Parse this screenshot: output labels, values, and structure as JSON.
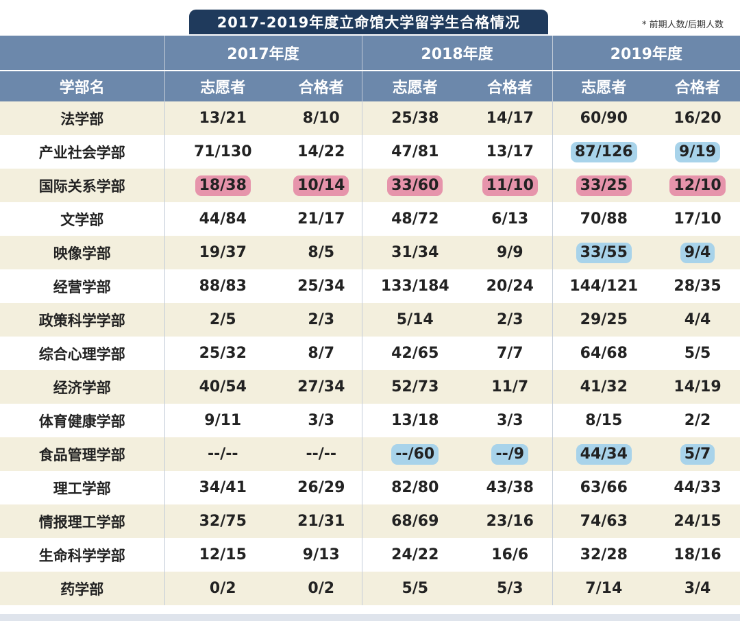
{
  "title": "2017-2019年度立命馆大学留学生合格情况",
  "note": "* 前期人数/后期人数",
  "header": {
    "dept_label": "学部名",
    "years": [
      "2017年度",
      "2018年度",
      "2019年度"
    ],
    "volunteer_label": "志愿者",
    "pass_label": "合格者"
  },
  "highlight_colors": {
    "pink": "#e694ab",
    "blue": "#a8d3ea"
  },
  "rows": [
    {
      "name": "法学部",
      "values": [
        "13/21",
        "8/10",
        "25/38",
        "14/17",
        "60/90",
        "16/20"
      ],
      "hl": [
        "",
        "",
        "",
        "",
        "",
        ""
      ]
    },
    {
      "name": "产业社会学部",
      "values": [
        "71/130",
        "14/22",
        "47/81",
        "13/17",
        "87/126",
        "9/19"
      ],
      "hl": [
        "",
        "",
        "",
        "",
        "blue",
        "blue"
      ]
    },
    {
      "name": "国际关系学部",
      "values": [
        "18/38",
        "10/14",
        "33/60",
        "11/10",
        "33/25",
        "12/10"
      ],
      "hl": [
        "pink",
        "pink",
        "pink",
        "pink",
        "pink",
        "pink"
      ]
    },
    {
      "name": "文学部",
      "values": [
        "44/84",
        "21/17",
        "48/72",
        "6/13",
        "70/88",
        "17/10"
      ],
      "hl": [
        "",
        "",
        "",
        "",
        "",
        ""
      ]
    },
    {
      "name": "映像学部",
      "values": [
        "19/37",
        "8/5",
        "31/34",
        "9/9",
        "33/55",
        "9/4"
      ],
      "hl": [
        "",
        "",
        "",
        "",
        "blue",
        "blue"
      ]
    },
    {
      "name": "经营学部",
      "values": [
        "88/83",
        "25/34",
        "133/184",
        "20/24",
        "144/121",
        "28/35"
      ],
      "hl": [
        "",
        "",
        "",
        "",
        "",
        ""
      ]
    },
    {
      "name": "政策科学学部",
      "values": [
        "2/5",
        "2/3",
        "5/14",
        "2/3",
        "29/25",
        "4/4"
      ],
      "hl": [
        "",
        "",
        "",
        "",
        "",
        ""
      ]
    },
    {
      "name": "综合心理学部",
      "values": [
        "25/32",
        "8/7",
        "42/65",
        "7/7",
        "64/68",
        "5/5"
      ],
      "hl": [
        "",
        "",
        "",
        "",
        "",
        ""
      ]
    },
    {
      "name": "经济学部",
      "values": [
        "40/54",
        "27/34",
        "52/73",
        "11/7",
        "41/32",
        "14/19"
      ],
      "hl": [
        "",
        "",
        "",
        "",
        "",
        ""
      ]
    },
    {
      "name": "体育健康学部",
      "values": [
        "9/11",
        "3/3",
        "13/18",
        "3/3",
        "8/15",
        "2/2"
      ],
      "hl": [
        "",
        "",
        "",
        "",
        "",
        ""
      ]
    },
    {
      "name": "食品管理学部",
      "values": [
        "--/--",
        "--/--",
        "--/60",
        "--/9",
        "44/34",
        "5/7"
      ],
      "hl": [
        "",
        "",
        "blue",
        "blue",
        "blue",
        "blue"
      ]
    },
    {
      "name": "理工学部",
      "values": [
        "34/41",
        "26/29",
        "82/80",
        "43/38",
        "63/66",
        "44/33"
      ],
      "hl": [
        "",
        "",
        "",
        "",
        "",
        ""
      ]
    },
    {
      "name": "情报理工学部",
      "values": [
        "32/75",
        "21/31",
        "68/69",
        "23/16",
        "74/63",
        "24/15"
      ],
      "hl": [
        "",
        "",
        "",
        "",
        "",
        ""
      ]
    },
    {
      "name": "生命科学学部",
      "values": [
        "12/15",
        "9/13",
        "24/22",
        "16/6",
        "32/28",
        "18/16"
      ],
      "hl": [
        "",
        "",
        "",
        "",
        "",
        ""
      ]
    },
    {
      "name": "药学部",
      "values": [
        "0/2",
        "0/2",
        "5/5",
        "5/3",
        "7/14",
        "3/4"
      ],
      "hl": [
        "",
        "",
        "",
        "",
        "",
        ""
      ]
    }
  ]
}
